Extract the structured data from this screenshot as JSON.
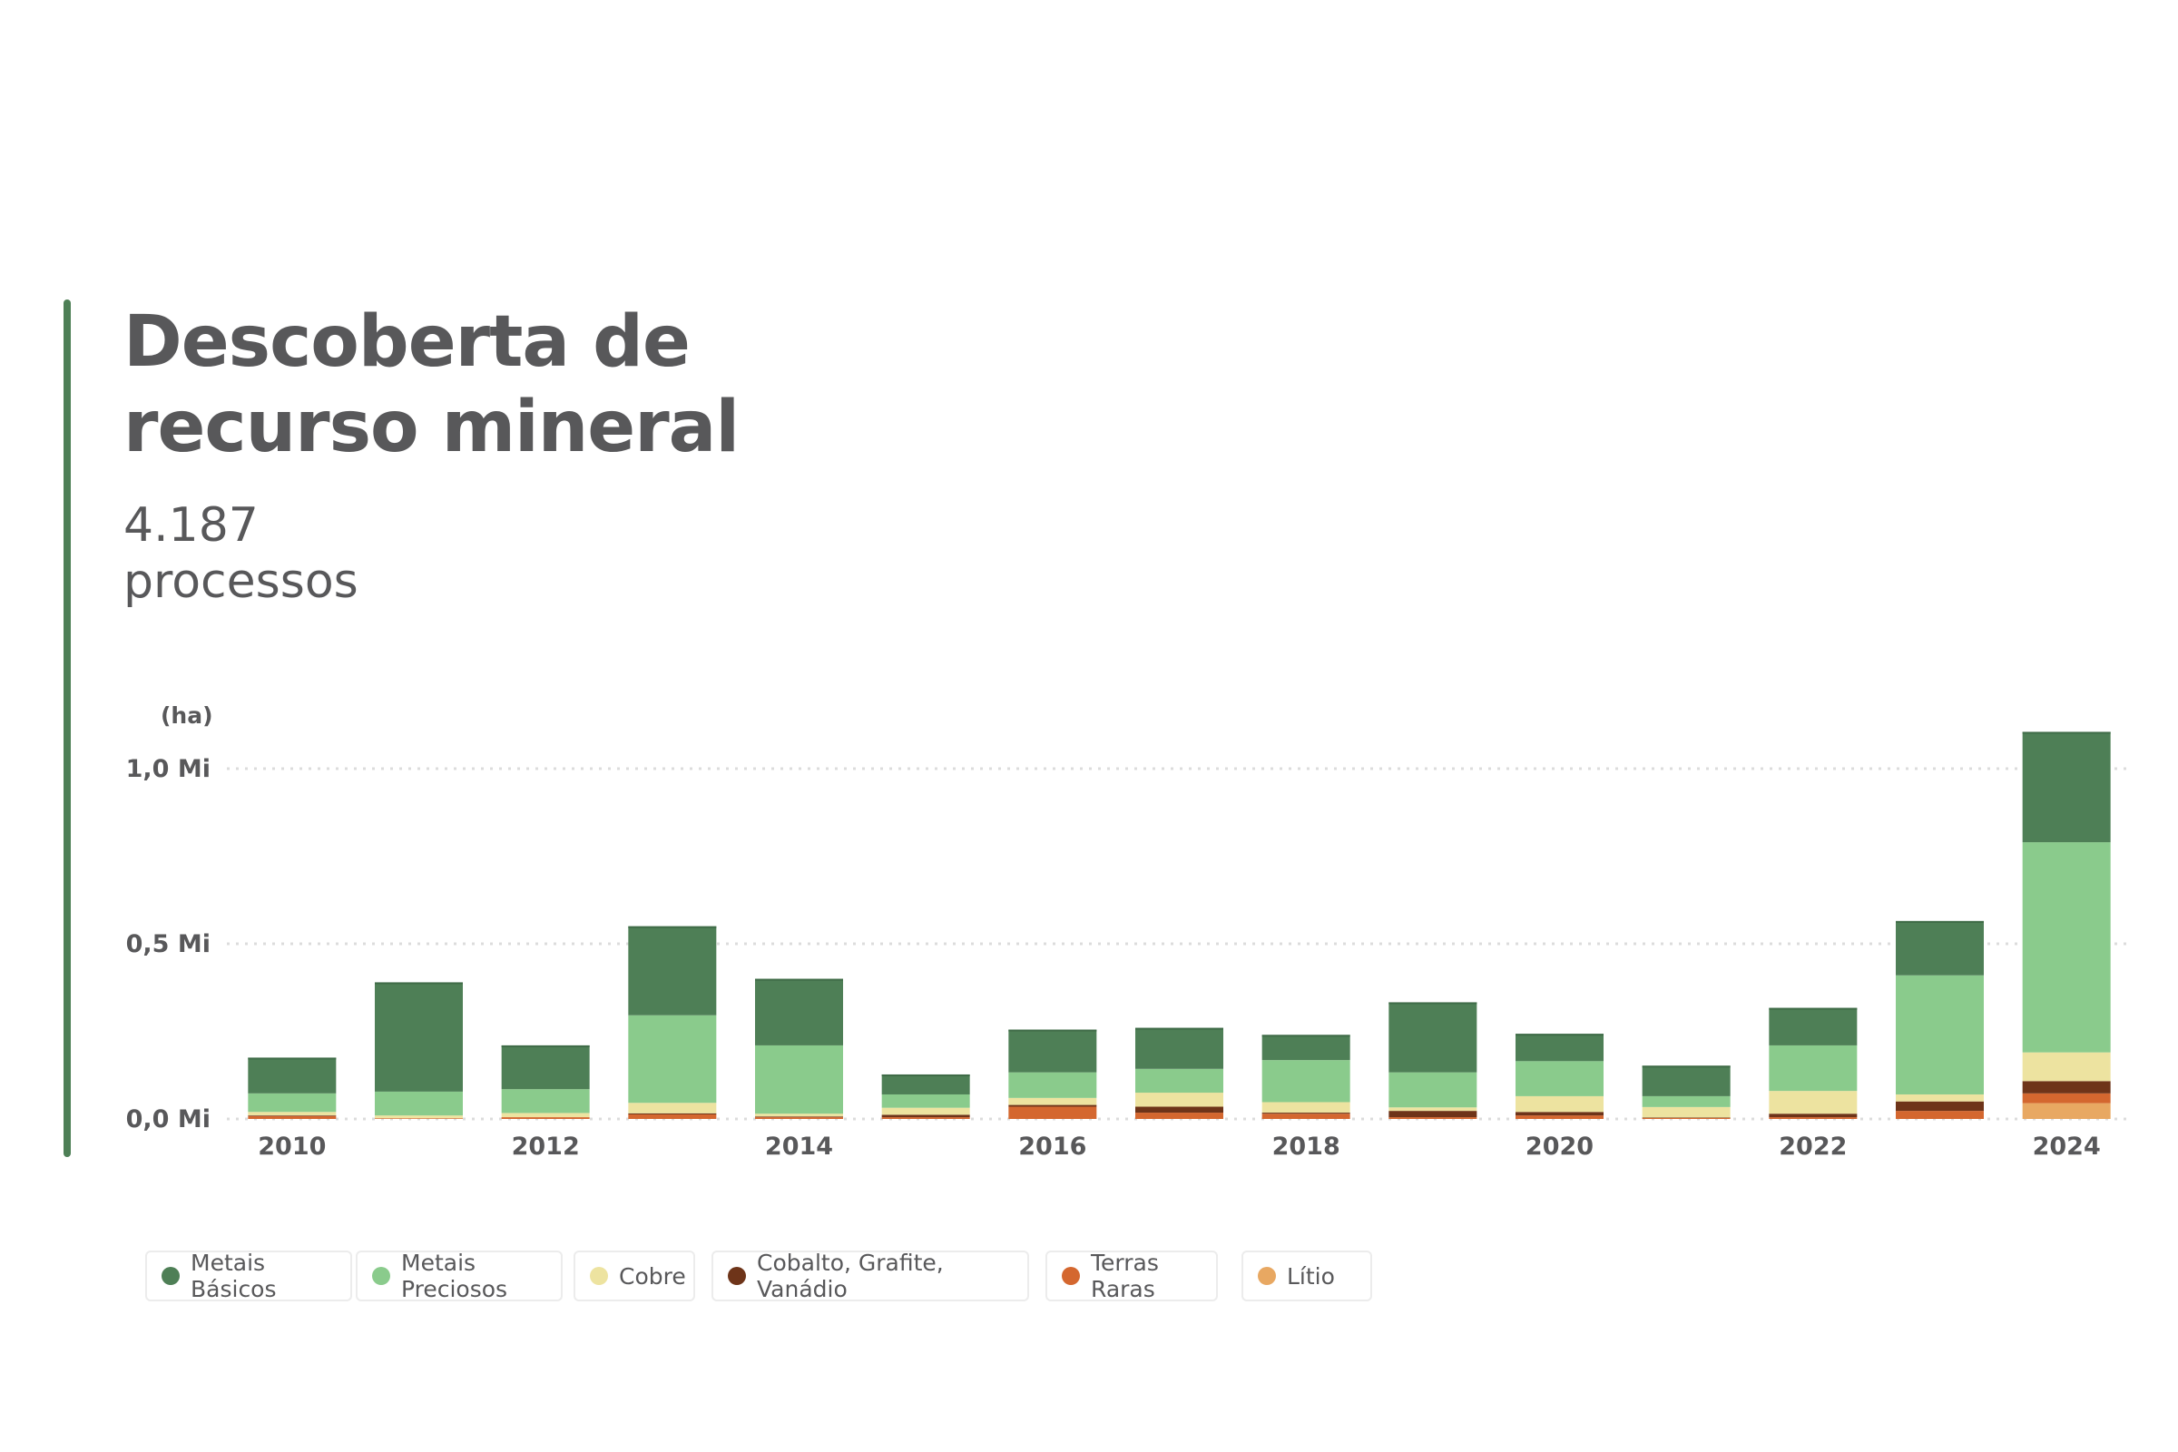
{
  "header": {
    "title_line1": "Descoberta de",
    "title_line2": "recurso mineral",
    "count": "4.187",
    "count_label": "processos"
  },
  "chart_data": {
    "type": "bar",
    "stacked": true,
    "y_unit_label": "(ha)",
    "ylim": [
      0,
      1.1
    ],
    "y_ticks": [
      {
        "value": 0.0,
        "label": "0,0 Mi"
      },
      {
        "value": 0.5,
        "label": "0,5 Mi"
      },
      {
        "value": 1.0,
        "label": "1,0 Mi"
      }
    ],
    "grid": "horizontal-dotted",
    "categories": [
      "2010",
      "2011",
      "2012",
      "2013",
      "2014",
      "2015",
      "2016",
      "2017",
      "2018",
      "2019",
      "2020",
      "2021",
      "2022",
      "2023",
      "2024"
    ],
    "x_tick_labels": [
      "2010",
      "2012",
      "2014",
      "2016",
      "2018",
      "2020",
      "2022",
      "2024"
    ],
    "series": [
      {
        "name": "Lítio",
        "color": "#e8a862",
        "values": [
          0.0,
          0.0,
          0.0,
          0.0,
          0.0,
          0.0,
          0.0,
          0.0,
          0.0,
          0.0,
          0.0,
          0.0,
          0.0,
          0.0,
          0.045
        ]
      },
      {
        "name": "Terras Raras",
        "color": "#d4672f",
        "values": [
          0.008,
          0.002,
          0.005,
          0.013,
          0.005,
          0.005,
          0.035,
          0.018,
          0.015,
          0.005,
          0.01,
          0.003,
          0.005,
          0.023,
          0.028
        ]
      },
      {
        "name": "Cobalto, Grafite, Vanádio",
        "color": "#6e3419",
        "values": [
          0.002,
          0.0,
          0.0,
          0.003,
          0.002,
          0.007,
          0.005,
          0.017,
          0.003,
          0.018,
          0.01,
          0.001,
          0.01,
          0.027,
          0.035
        ]
      },
      {
        "name": "Cobre",
        "color": "#ede3a0",
        "values": [
          0.01,
          0.008,
          0.012,
          0.03,
          0.008,
          0.02,
          0.02,
          0.04,
          0.03,
          0.01,
          0.045,
          0.03,
          0.065,
          0.02,
          0.082
        ]
      },
      {
        "name": "Metais Preciosos",
        "color": "#8acb8c",
        "values": [
          0.053,
          0.068,
          0.068,
          0.25,
          0.195,
          0.038,
          0.073,
          0.068,
          0.12,
          0.1,
          0.1,
          0.031,
          0.13,
          0.34,
          0.6
        ]
      },
      {
        "name": "Metais Básicos",
        "color": "#4e7f56",
        "values": [
          0.102,
          0.312,
          0.125,
          0.254,
          0.19,
          0.057,
          0.122,
          0.117,
          0.072,
          0.2,
          0.078,
          0.087,
          0.107,
          0.155,
          0.315
        ]
      }
    ],
    "legend_order": [
      "Metais Básicos",
      "Metais Preciosos",
      "Cobre",
      "Cobalto, Grafite, Vanádio",
      "Terras Raras",
      "Lítio"
    ],
    "legend_position": "bottom-left"
  }
}
